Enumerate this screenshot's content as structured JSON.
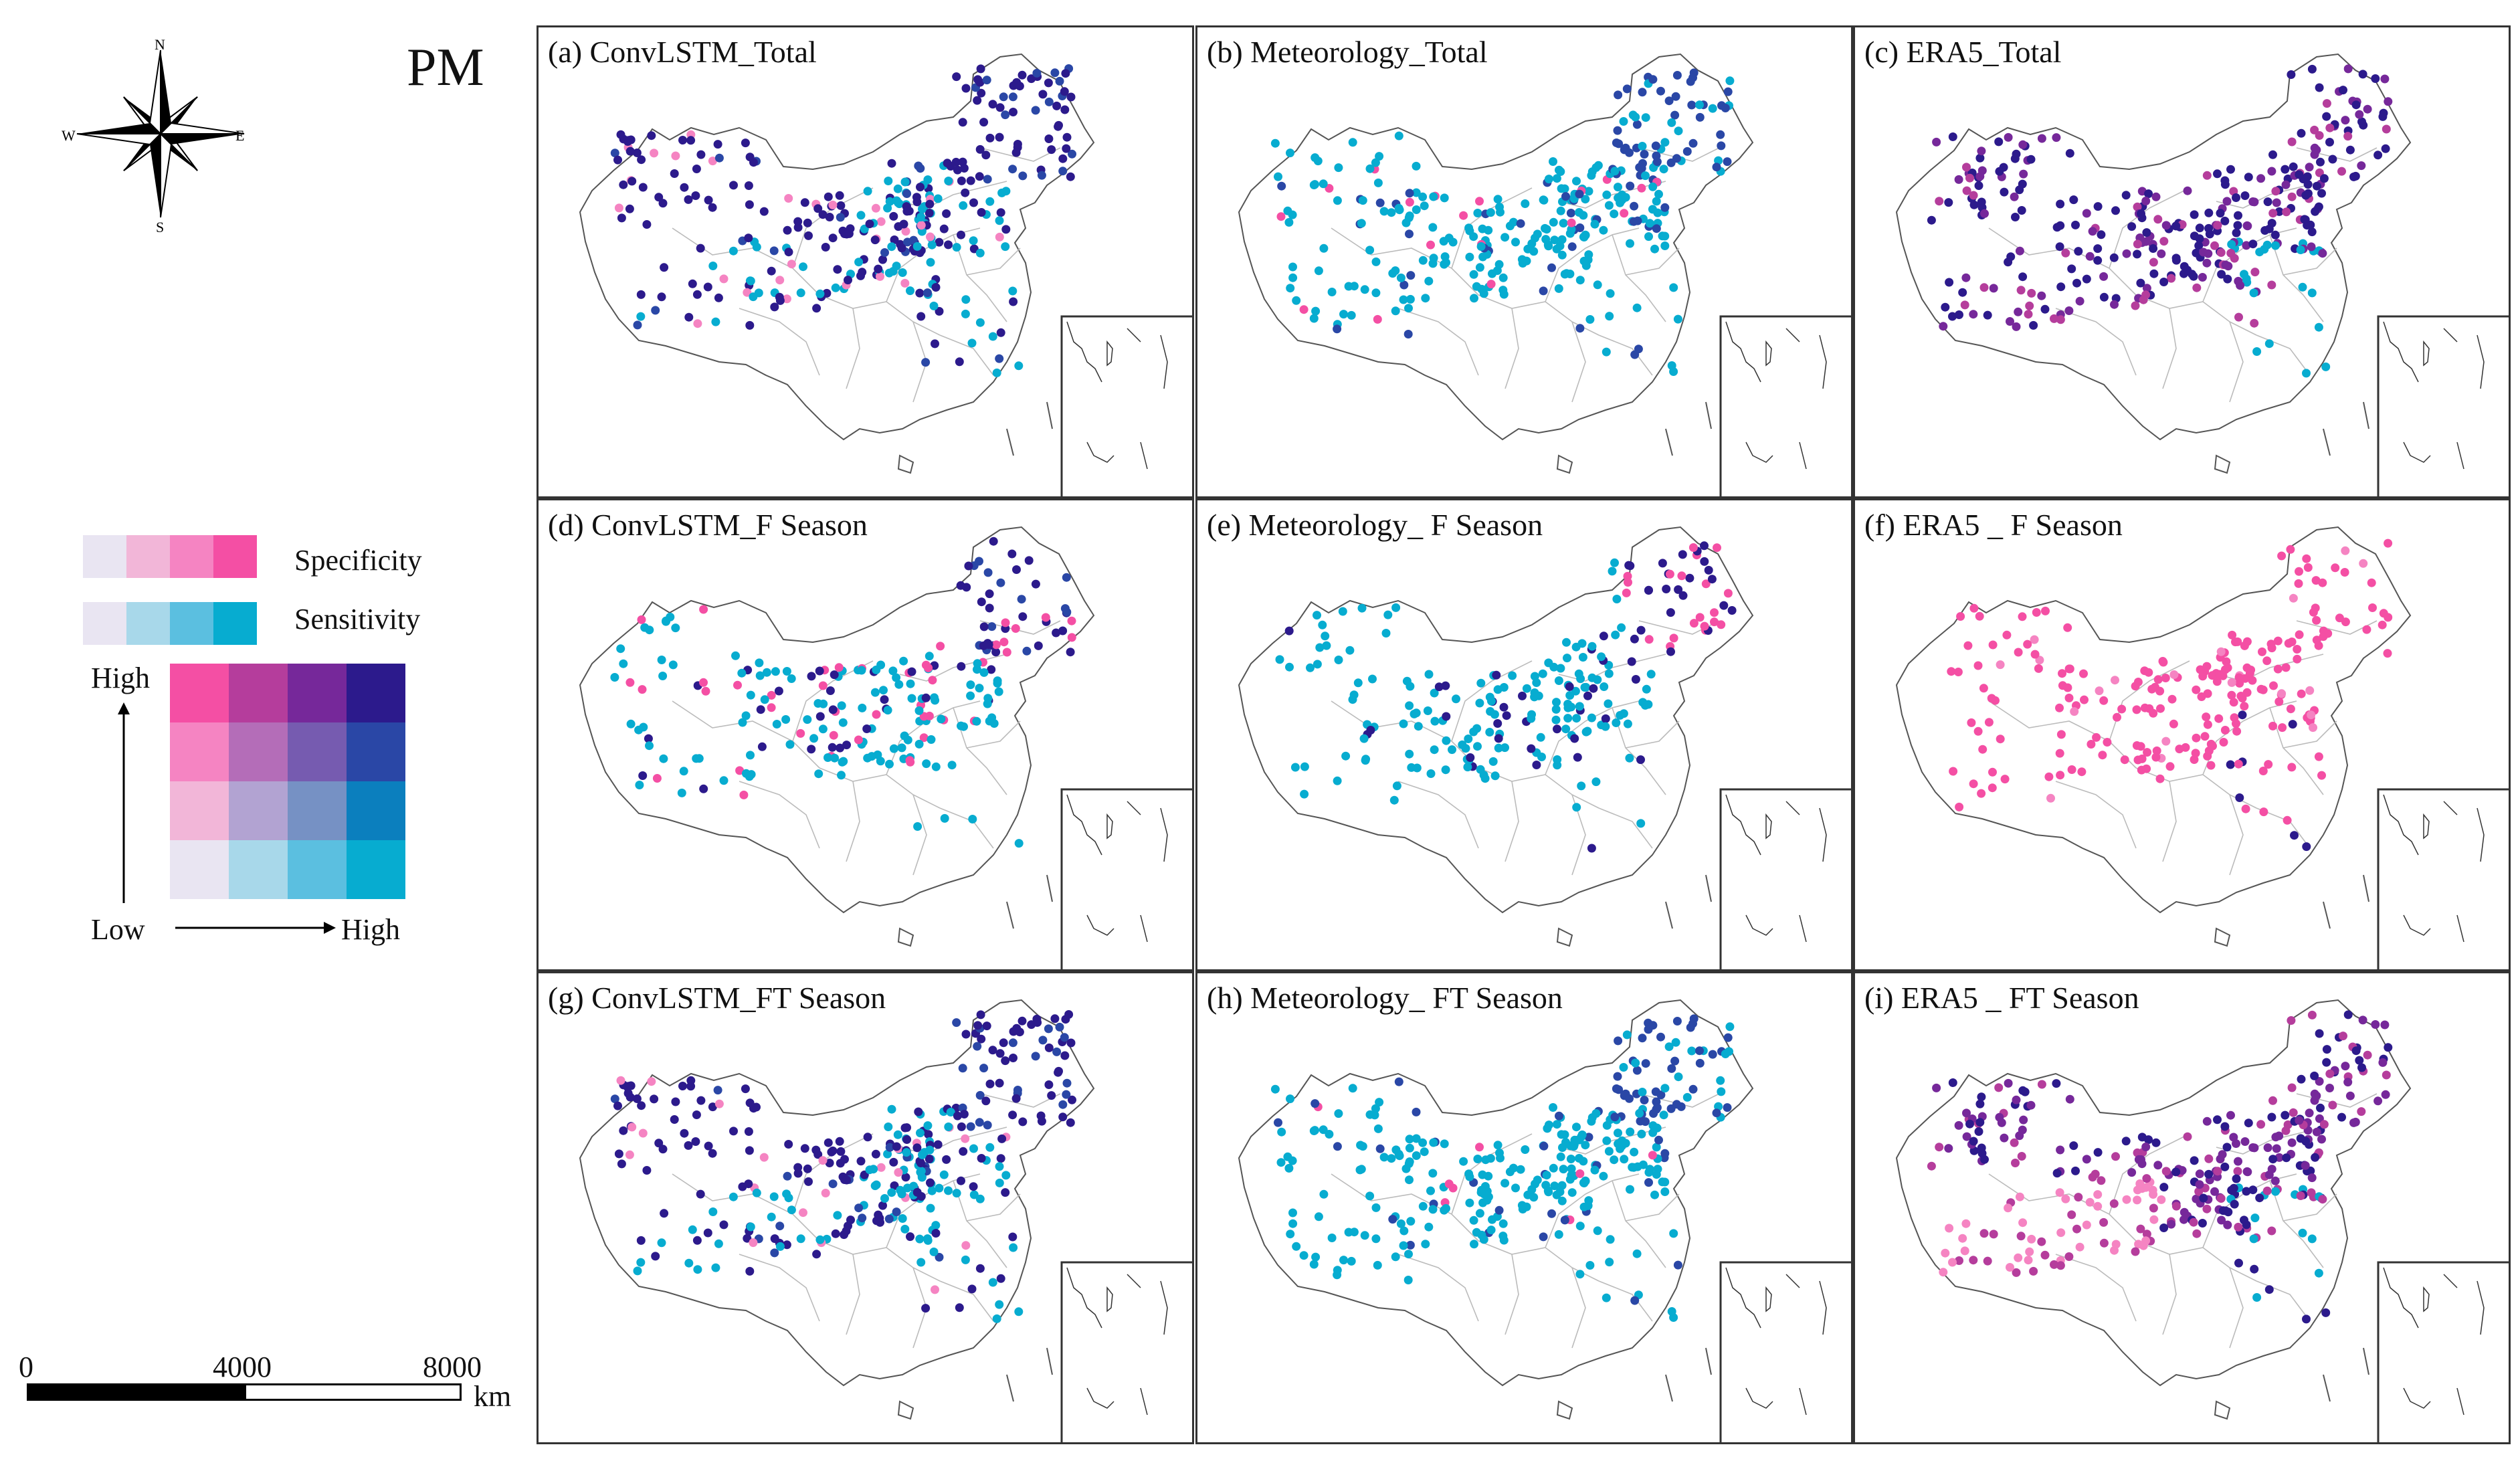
{
  "figure_title": "PM",
  "compass": {
    "north": "N",
    "south": "S",
    "east": "E",
    "west": "W",
    "icon": "compass-rose-icon"
  },
  "legend": {
    "specificity_label": "Specificity",
    "sensitivity_label": "Sensitivity",
    "specificity_colors": [
      "#e9e5f2",
      "#f2b6d8",
      "#f584c2",
      "#f44fa4"
    ],
    "sensitivity_colors": [
      "#e9e5f2",
      "#a8d8ea",
      "#5bbfe0",
      "#07acd0"
    ],
    "axis_high_y": "High",
    "axis_low": "Low",
    "axis_high_x": "High",
    "bivariate_grid": [
      [
        "#f44fa4",
        "#b53d9c",
        "#76289a",
        "#2c1a8c"
      ],
      [
        "#f584c2",
        "#b46db8",
        "#765bb0",
        "#2a47a6"
      ],
      [
        "#f2b6d8",
        "#b2a3d2",
        "#7691c4",
        "#0b7fbe"
      ],
      [
        "#e9e5f2",
        "#a8d8ea",
        "#5bbfe0",
        "#07acd0"
      ]
    ]
  },
  "scale_bar": {
    "ticks": [
      "0",
      "4000",
      "8000"
    ],
    "unit": "km"
  },
  "panels": [
    {
      "title": "(a) ConvLSTM_Total",
      "scheme": "mixed"
    },
    {
      "title": "(b) Meteorology_Total",
      "scheme": "cyan"
    },
    {
      "title": "(c) ERA5_Total",
      "scheme": "purple"
    },
    {
      "title": "(d) ConvLSTM_F Season",
      "scheme": "mixed-sparse"
    },
    {
      "title": "(e) Meteorology_ F Season",
      "scheme": "cyan-sparse"
    },
    {
      "title": "(f) ERA5 _ F Season",
      "scheme": "pink"
    },
    {
      "title": "(g) ConvLSTM_FT Season",
      "scheme": "mixed"
    },
    {
      "title": "(h) Meteorology_ FT Season",
      "scheme": "cyan"
    },
    {
      "title": "(i) ERA5 _ FT Season",
      "scheme": "purple-pink"
    }
  ]
}
